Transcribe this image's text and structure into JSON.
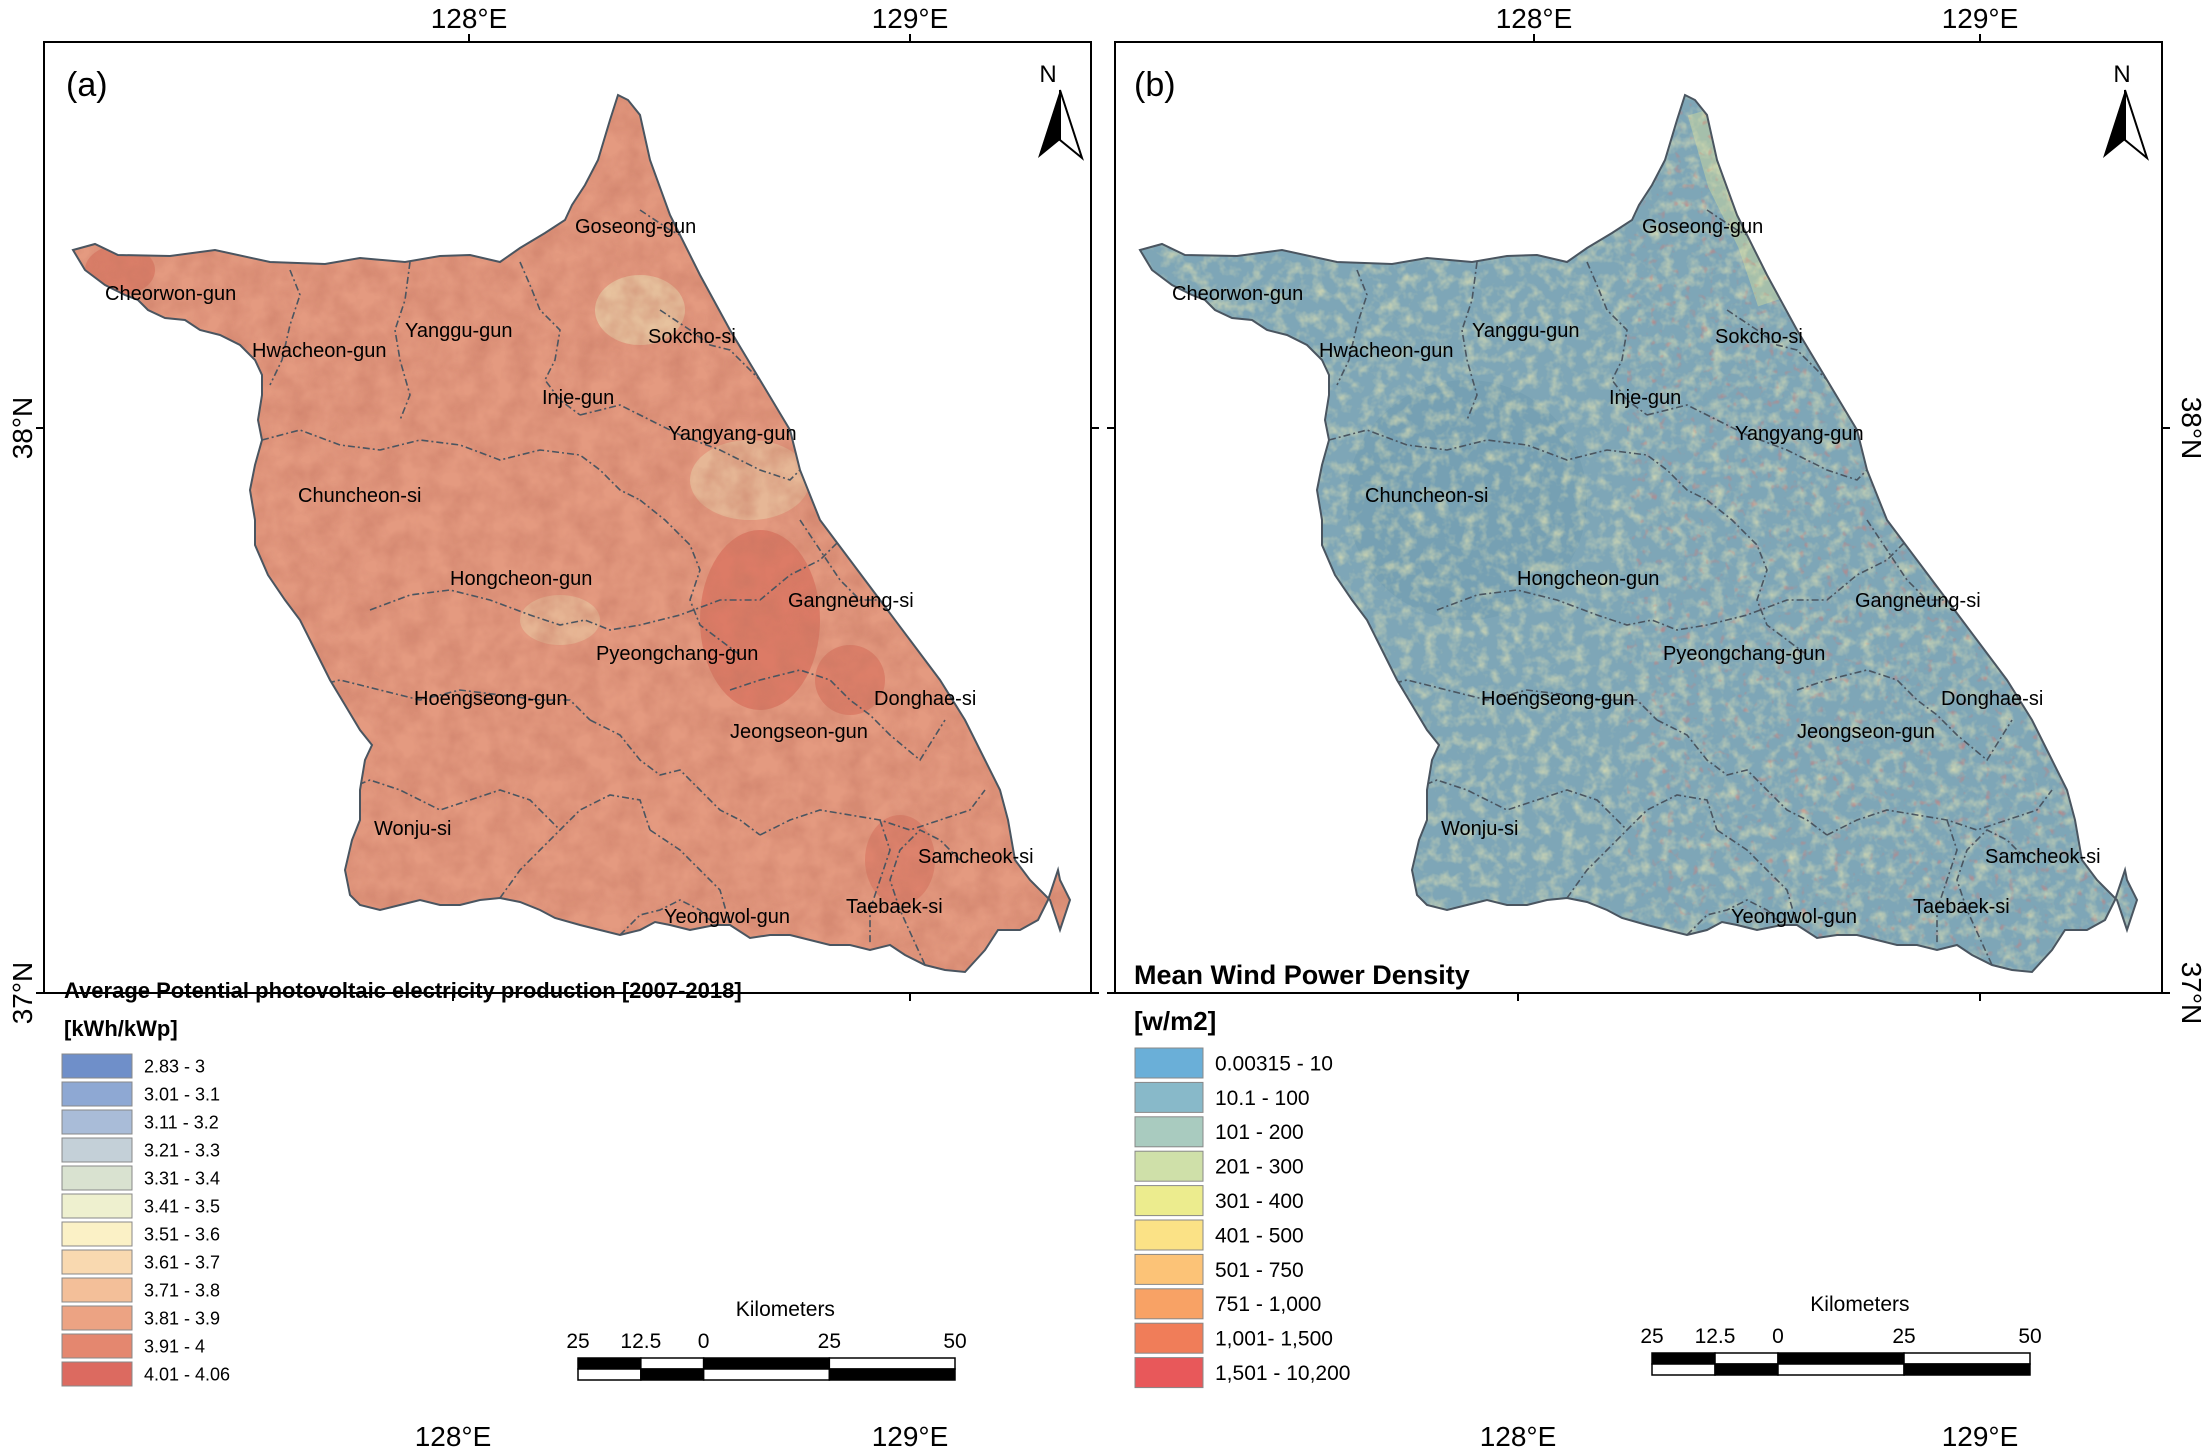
{
  "panel_a": {
    "label": "(a)",
    "north": "N",
    "legend_title": "Average Potential photovoltaic electricity production [2007-2018]",
    "legend_unit": "[kWh/kWp]",
    "legend": [
      {
        "label": "2.83 - 3",
        "color": "#6f8fc9"
      },
      {
        "label": "3.01 - 3.1",
        "color": "#8ea8d3"
      },
      {
        "label": "3.11 - 3.2",
        "color": "#a9bcd8"
      },
      {
        "label": "3.21 - 3.3",
        "color": "#c4d0d8"
      },
      {
        "label": "3.31 - 3.4",
        "color": "#d9e2d0"
      },
      {
        "label": "3.41 - 3.5",
        "color": "#eef0cf"
      },
      {
        "label": "3.51 - 3.6",
        "color": "#fbf1c6"
      },
      {
        "label": "3.61 - 3.7",
        "color": "#f9d9b0"
      },
      {
        "label": "3.71 - 3.8",
        "color": "#f3bf99"
      },
      {
        "label": "3.81 - 3.9",
        "color": "#eca383"
      },
      {
        "label": "3.91 - 4",
        "color": "#e4876f"
      },
      {
        "label": "4.01 - 4.06",
        "color": "#dc6a60"
      }
    ],
    "scale_title": "Kilometers",
    "scale_ticks": [
      "25",
      "12.5",
      "0",
      "25",
      "50"
    ],
    "fill_main": "#e49a80",
    "fill_dark": "#d9735f",
    "fill_light": "#e8cfa8",
    "places": [
      "Goseong-gun",
      "Cheorwon-gun",
      "Yanggu-gun",
      "Sokcho-si",
      "Hwacheon-gun",
      "Inje-gun",
      "Yangyang-gun",
      "Chuncheon-si",
      "Hongcheon-gun",
      "Gangneung-si",
      "Pyeongchang-gun",
      "Hoengseong-gun",
      "Donghae-si",
      "Jeongseon-gun",
      "Wonju-si",
      "Samcheok-si",
      "Yeongwol-gun",
      "Taebaek-si"
    ]
  },
  "panel_b": {
    "label": "(b)",
    "north": "N",
    "legend_title": "Mean Wind Power Density",
    "legend_unit": "[w/m2]",
    "legend": [
      {
        "label": "0.00315 - 10",
        "color": "#6aafd8"
      },
      {
        "label": "10.1 - 100",
        "color": "#88b9c9"
      },
      {
        "label": "101 - 200",
        "color": "#a9cbbf"
      },
      {
        "label": "201 - 300",
        "color": "#cfe0a9"
      },
      {
        "label": "301 - 400",
        "color": "#ecec8e"
      },
      {
        "label": "401 - 500",
        "color": "#fbe286"
      },
      {
        "label": "501 - 750",
        "color": "#fcc377"
      },
      {
        "label": "751 - 1,000",
        "color": "#f8a265"
      },
      {
        "label": "1,001- 1,500",
        "color": "#f07d59"
      },
      {
        "label": "1,501 - 10,200",
        "color": "#e8585a"
      }
    ],
    "scale_title": "Kilometers",
    "scale_ticks": [
      "25",
      "12.5",
      "0",
      "25",
      "50"
    ],
    "fill_main": "#7ea6b7",
    "fill_dark": "#6b98ad",
    "fill_light": "#bfd1a4",
    "places": [
      "Goseong-gun",
      "Cheorwon-gun",
      "Yanggu-gun",
      "Sokcho-si",
      "Hwacheon-gun",
      "Inje-gun",
      "Yangyang-gun",
      "Chuncheon-si",
      "Hongcheon-gun",
      "Gangneung-si",
      "Pyeongchang-gun",
      "Hoengseong-gun",
      "Donghae-si",
      "Jeongseon-gun",
      "Wonju-si",
      "Samcheok-si",
      "Yeongwol-gun",
      "Taebaek-si"
    ]
  },
  "graticule": {
    "lon": [
      "128°E",
      "129°E"
    ],
    "lat": [
      "38°N",
      "37°N"
    ]
  },
  "colors": {
    "border": "#000000",
    "district_line": "#4a5560"
  }
}
